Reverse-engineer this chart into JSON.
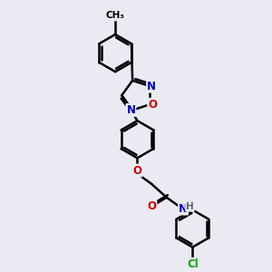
{
  "bg_color": "#eaeaf2",
  "bond_color": "#000000",
  "bond_width": 1.8,
  "atom_colors": {
    "C": "#000000",
    "N": "#0000cc",
    "O": "#cc0000",
    "Cl": "#00aa00",
    "H": "#666666"
  },
  "font_size": 8.5,
  "fig_size": [
    3.0,
    3.0
  ],
  "dpi": 100
}
